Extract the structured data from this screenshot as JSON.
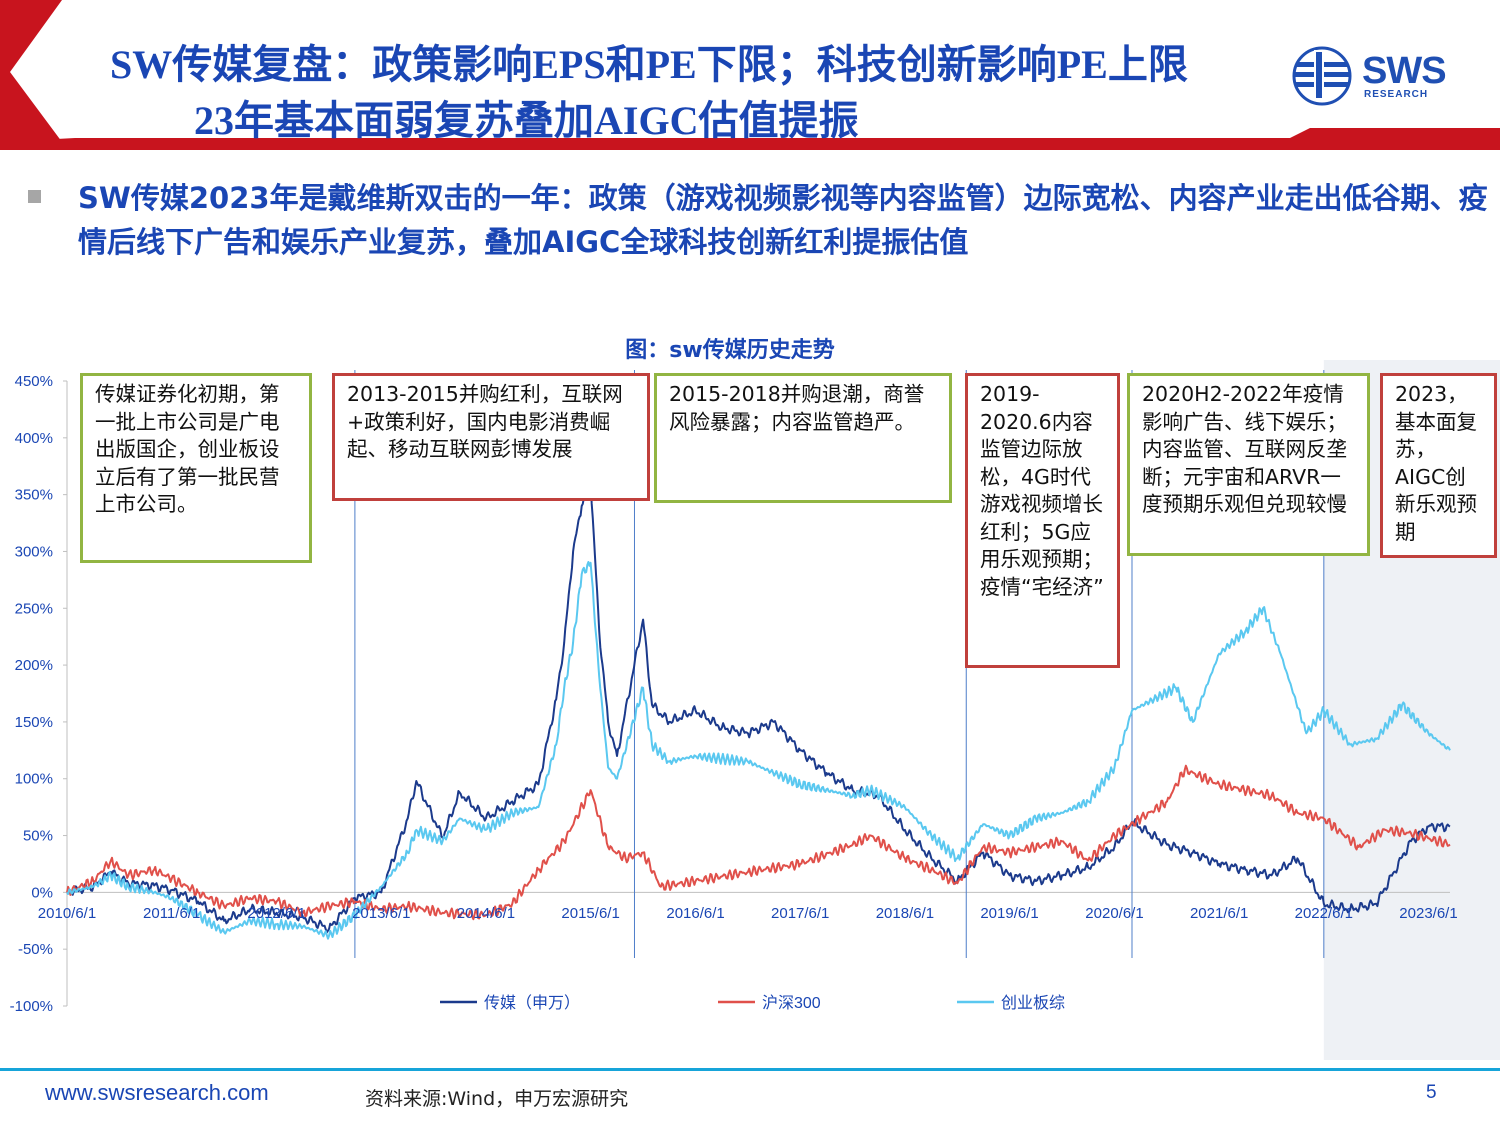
{
  "header": {
    "title_line1": "SW传媒复盘：政策影响EPS和PE下限；科技创新影响PE上限",
    "title_line2": "23年基本面弱复苏叠加AIGC估值提振",
    "logo_text": "SWS",
    "logo_sub": "RESEARCH"
  },
  "lead_text": "SW传媒2023年是戴维斯双击的一年：政策（游戏视频影视等内容监管）边际宽松、内容产业走出低谷期、疫情后线下广告和娱乐产业复苏，叠加AIGC全球科技创新红利提振估值",
  "chart_title": "图：sw传媒历史走势",
  "annotations": [
    {
      "text": "传媒证券化初期，第一批上市公司是广电出版国企，创业板设立后有了第一批民营上市公司。",
      "color": "green"
    },
    {
      "text": "2013-2015并购红利，互联网+政策利好，国内电影消费崛起、移动互联网彭博发展",
      "color": "red"
    },
    {
      "text": "2015-2018并购退潮，商誉风险暴露；内容监管趋严。",
      "color": "green"
    },
    {
      "text": "2019-2020.6内容监管边际放松，4G时代游戏视频增长红利；5G应用乐观预期；疫情“宅经济”",
      "color": "red"
    },
    {
      "text": "2020H2-2022年疫情影响广告、线下娱乐；内容监管、互联网反垄断；元宇宙和ARVR一度预期乐观但兑现较慢",
      "color": "green"
    },
    {
      "text": "2023，基本面复苏，AIGC创新乐观预期",
      "color": "red"
    }
  ],
  "chart_data": {
    "type": "line",
    "title": "图：sw传媒历史走势",
    "ylim": [
      -100,
      450
    ],
    "y_ticks": [
      -100,
      -50,
      0,
      50,
      100,
      150,
      200,
      250,
      300,
      350,
      400,
      450
    ],
    "y_tick_labels": [
      "-100%",
      "-50%",
      "0%",
      "50%",
      "100%",
      "150%",
      "200%",
      "250%",
      "300%",
      "350%",
      "400%",
      "450%"
    ],
    "x_ticks": [
      "2010/6/1",
      "2011/6/1",
      "2012/6/1",
      "2013/6/1",
      "2014/6/1",
      "2015/6/1",
      "2016/6/1",
      "2017/6/1",
      "2018/6/1",
      "2019/6/1",
      "2020/6/1",
      "2021/6/1",
      "2022/6/1",
      "2023/6/1"
    ],
    "xlim": [
      "2010-06-01",
      "2023-08-15"
    ],
    "period_dividers": [
      "2013-03-01",
      "2015-11-01",
      "2019-01-01",
      "2020-08-01",
      "2022-06-01"
    ],
    "highlight_from": "2022-06-01",
    "legend_position": "bottom",
    "series": [
      {
        "name": "传媒（申万）",
        "color": "#1b3a8c",
        "points": [
          [
            "2010-06-01",
            0
          ],
          [
            "2010-09-01",
            5
          ],
          [
            "2010-11-01",
            18
          ],
          [
            "2011-01-01",
            8
          ],
          [
            "2011-04-01",
            6
          ],
          [
            "2011-06-01",
            2
          ],
          [
            "2011-09-01",
            -8
          ],
          [
            "2011-12-01",
            -25
          ],
          [
            "2012-03-01",
            -15
          ],
          [
            "2012-06-01",
            -18
          ],
          [
            "2012-09-01",
            -22
          ],
          [
            "2012-12-01",
            -32
          ],
          [
            "2013-03-01",
            -5
          ],
          [
            "2013-06-01",
            0
          ],
          [
            "2013-09-01",
            65
          ],
          [
            "2013-10-01",
            98
          ],
          [
            "2014-01-01",
            48
          ],
          [
            "2014-03-01",
            88
          ],
          [
            "2014-06-01",
            65
          ],
          [
            "2014-09-01",
            80
          ],
          [
            "2014-12-01",
            95
          ],
          [
            "2015-02-01",
            170
          ],
          [
            "2015-03-01",
            220
          ],
          [
            "2015-04-01",
            300
          ],
          [
            "2015-05-01",
            340
          ],
          [
            "2015-06-01",
            362
          ],
          [
            "2015-07-01",
            230
          ],
          [
            "2015-08-01",
            150
          ],
          [
            "2015-09-01",
            120
          ],
          [
            "2015-12-01",
            240
          ],
          [
            "2016-01-01",
            165
          ],
          [
            "2016-03-01",
            150
          ],
          [
            "2016-06-01",
            160
          ],
          [
            "2016-09-01",
            145
          ],
          [
            "2016-12-01",
            140
          ],
          [
            "2017-03-01",
            150
          ],
          [
            "2017-06-01",
            125
          ],
          [
            "2017-09-01",
            105
          ],
          [
            "2017-12-01",
            90
          ],
          [
            "2018-03-01",
            85
          ],
          [
            "2018-06-01",
            55
          ],
          [
            "2018-09-01",
            30
          ],
          [
            "2018-12-01",
            10
          ],
          [
            "2019-03-01",
            35
          ],
          [
            "2019-06-01",
            15
          ],
          [
            "2019-09-01",
            10
          ],
          [
            "2019-12-01",
            15
          ],
          [
            "2020-03-01",
            22
          ],
          [
            "2020-06-01",
            40
          ],
          [
            "2020-08-01",
            62
          ],
          [
            "2020-12-01",
            42
          ],
          [
            "2021-03-01",
            35
          ],
          [
            "2021-06-01",
            25
          ],
          [
            "2021-09-01",
            20
          ],
          [
            "2021-12-01",
            15
          ],
          [
            "2022-03-01",
            30
          ],
          [
            "2022-06-01",
            -10
          ],
          [
            "2022-09-01",
            -15
          ],
          [
            "2022-12-01",
            -10
          ],
          [
            "2023-02-01",
            18
          ],
          [
            "2023-04-01",
            45
          ],
          [
            "2023-06-01",
            58
          ],
          [
            "2023-08-15",
            58
          ]
        ]
      },
      {
        "name": "沪深300",
        "color": "#e0504a",
        "points": [
          [
            "2010-06-01",
            0
          ],
          [
            "2010-09-01",
            10
          ],
          [
            "2010-11-01",
            28
          ],
          [
            "2011-01-01",
            15
          ],
          [
            "2011-04-01",
            20
          ],
          [
            "2011-06-01",
            12
          ],
          [
            "2011-09-01",
            0
          ],
          [
            "2011-12-01",
            -12
          ],
          [
            "2012-03-01",
            -5
          ],
          [
            "2012-06-01",
            -8
          ],
          [
            "2012-09-01",
            -18
          ],
          [
            "2012-12-01",
            -12
          ],
          [
            "2013-03-01",
            -8
          ],
          [
            "2013-06-01",
            -15
          ],
          [
            "2013-09-01",
            -12
          ],
          [
            "2014-01-01",
            -18
          ],
          [
            "2014-06-01",
            -20
          ],
          [
            "2014-09-01",
            -10
          ],
          [
            "2014-12-01",
            20
          ],
          [
            "2015-03-01",
            45
          ],
          [
            "2015-06-01",
            90
          ],
          [
            "2015-08-01",
            40
          ],
          [
            "2015-10-01",
            30
          ],
          [
            "2015-12-01",
            35
          ],
          [
            "2016-02-01",
            5
          ],
          [
            "2016-06-01",
            10
          ],
          [
            "2016-12-01",
            18
          ],
          [
            "2017-06-01",
            25
          ],
          [
            "2017-12-01",
            42
          ],
          [
            "2018-02-01",
            50
          ],
          [
            "2018-06-01",
            30
          ],
          [
            "2018-09-01",
            20
          ],
          [
            "2018-12-01",
            8
          ],
          [
            "2019-03-01",
            40
          ],
          [
            "2019-06-01",
            35
          ],
          [
            "2019-12-01",
            45
          ],
          [
            "2020-03-01",
            28
          ],
          [
            "2020-06-01",
            50
          ],
          [
            "2020-09-01",
            65
          ],
          [
            "2020-12-01",
            80
          ],
          [
            "2021-02-01",
            108
          ],
          [
            "2021-06-01",
            95
          ],
          [
            "2021-12-01",
            85
          ],
          [
            "2022-03-01",
            70
          ],
          [
            "2022-06-01",
            65
          ],
          [
            "2022-10-01",
            40
          ],
          [
            "2023-01-01",
            55
          ],
          [
            "2023-04-01",
            52
          ],
          [
            "2023-08-15",
            42
          ]
        ]
      },
      {
        "name": "创业板综",
        "color": "#5ac8f0",
        "points": [
          [
            "2010-06-01",
            0
          ],
          [
            "2010-09-01",
            5
          ],
          [
            "2010-11-01",
            15
          ],
          [
            "2011-01-01",
            5
          ],
          [
            "2011-04-01",
            0
          ],
          [
            "2011-06-01",
            -5
          ],
          [
            "2011-09-01",
            -20
          ],
          [
            "2011-12-01",
            -35
          ],
          [
            "2012-03-01",
            -25
          ],
          [
            "2012-06-01",
            -28
          ],
          [
            "2012-09-01",
            -30
          ],
          [
            "2012-12-01",
            -38
          ],
          [
            "2013-03-01",
            -20
          ],
          [
            "2013-06-01",
            5
          ],
          [
            "2013-09-01",
            35
          ],
          [
            "2013-10-01",
            55
          ],
          [
            "2014-01-01",
            45
          ],
          [
            "2014-03-01",
            65
          ],
          [
            "2014-06-01",
            55
          ],
          [
            "2014-09-01",
            70
          ],
          [
            "2014-12-01",
            75
          ],
          [
            "2015-02-01",
            130
          ],
          [
            "2015-03-01",
            180
          ],
          [
            "2015-04-01",
            220
          ],
          [
            "2015-05-01",
            280
          ],
          [
            "2015-06-01",
            290
          ],
          [
            "2015-07-01",
            190
          ],
          [
            "2015-08-01",
            110
          ],
          [
            "2015-09-01",
            100
          ],
          [
            "2015-12-01",
            180
          ],
          [
            "2016-01-01",
            130
          ],
          [
            "2016-03-01",
            115
          ],
          [
            "2016-06-01",
            120
          ],
          [
            "2016-12-01",
            115
          ],
          [
            "2017-06-01",
            95
          ],
          [
            "2017-12-01",
            85
          ],
          [
            "2018-02-01",
            90
          ],
          [
            "2018-06-01",
            75
          ],
          [
            "2018-09-01",
            50
          ],
          [
            "2018-12-01",
            30
          ],
          [
            "2019-03-01",
            60
          ],
          [
            "2019-06-01",
            50
          ],
          [
            "2019-09-01",
            65
          ],
          [
            "2019-12-01",
            70
          ],
          [
            "2020-03-01",
            80
          ],
          [
            "2020-06-01",
            110
          ],
          [
            "2020-08-01",
            160
          ],
          [
            "2021-01-01",
            180
          ],
          [
            "2021-03-01",
            150
          ],
          [
            "2021-06-01",
            210
          ],
          [
            "2021-09-01",
            230
          ],
          [
            "2021-11-01",
            250
          ],
          [
            "2022-01-01",
            210
          ],
          [
            "2022-04-01",
            140
          ],
          [
            "2022-06-01",
            160
          ],
          [
            "2022-09-01",
            130
          ],
          [
            "2022-12-01",
            135
          ],
          [
            "2023-03-01",
            165
          ],
          [
            "2023-06-01",
            140
          ],
          [
            "2023-08-15",
            125
          ]
        ]
      }
    ]
  },
  "footer": {
    "url": "www.swsresearch.com",
    "source": "资料来源:Wind，申万宏源研究",
    "page": "5"
  }
}
